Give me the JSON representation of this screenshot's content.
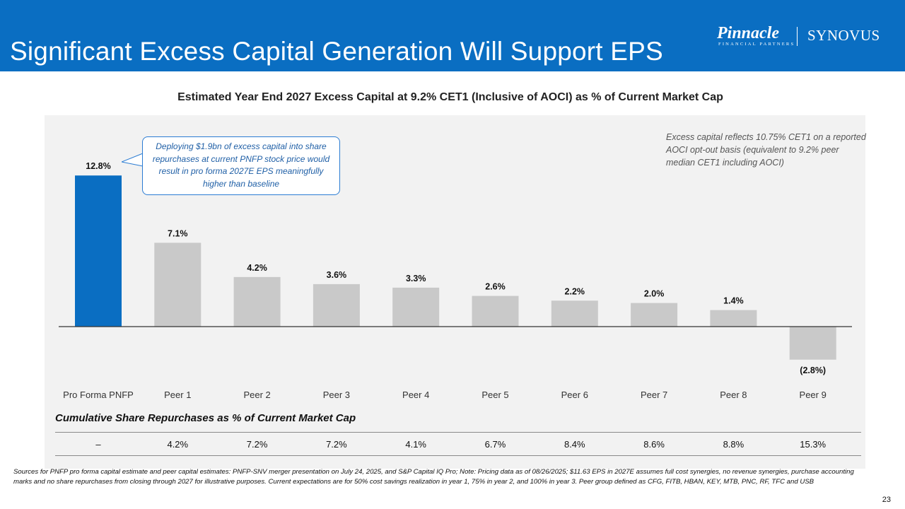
{
  "header": {
    "title": "Significant Excess Capital Generation Will Support EPS",
    "brand_color": "#0a6ec2"
  },
  "logos": {
    "pinnacle_name": "Pinnacle",
    "pinnacle_tagline": "FINANCIAL PARTNERS",
    "synovus_name": "SYNOVUS"
  },
  "chart_data": {
    "type": "bar",
    "title": "Estimated Year End 2027 Excess Capital at 9.2% CET1 (Inclusive of AOCI) as % of Current Market Cap",
    "categories": [
      "Pro Forma PNFP",
      "Peer 1",
      "Peer 2",
      "Peer 3",
      "Peer 4",
      "Peer 5",
      "Peer 6",
      "Peer 7",
      "Peer 8",
      "Peer 9"
    ],
    "values": [
      12.8,
      7.1,
      4.2,
      3.6,
      3.3,
      2.6,
      2.2,
      2.0,
      1.4,
      -2.8
    ],
    "data_labels": [
      "12.8%",
      "7.1%",
      "4.2%",
      "3.6%",
      "3.3%",
      "2.6%",
      "2.2%",
      "2.0%",
      "1.4%",
      "(2.8%)"
    ],
    "highlight_index": 0,
    "colors": {
      "highlight": "#0a6ec2",
      "peer": "#c9c9c9",
      "axis": "#333333"
    },
    "xlabel": "",
    "ylabel": "",
    "ylim": [
      -3,
      14
    ],
    "grid": false
  },
  "callout": {
    "text": "Deploying $1.9bn of excess capital into share repurchases at current PNFP stock price would result in pro forma 2027E EPS meaningfully higher than baseline"
  },
  "note": {
    "text": "Excess capital reflects 10.75% CET1 on a reported AOCI opt-out basis (equivalent to 9.2% peer median CET1 including AOCI)"
  },
  "repurchases": {
    "title": "Cumulative Share Repurchases as % of Current Market Cap",
    "values": [
      "–",
      "4.2%",
      "7.2%",
      "7.2%",
      "4.1%",
      "6.7%",
      "8.4%",
      "8.6%",
      "8.8%",
      "15.3%"
    ]
  },
  "footer": {
    "text": "Sources for PNFP pro forma capital estimate and peer capital estimates: PNFP-SNV merger presentation on July 24, 2025, and S&P Capital IQ Pro; Note: Pricing data as of 08/26/2025; $11.63 EPS in 2027E assumes full cost synergies, no revenue synergies, purchase accounting marks and no share repurchases from closing through 2027 for illustrative purposes. Current expectations are for 50% cost savings realization in year 1, 75% in year 2, and 100% in year 3.  Peer group defined as CFG, FITB, HBAN, KEY, MTB, PNC, RF, TFC and USB",
    "page_number": "23"
  }
}
